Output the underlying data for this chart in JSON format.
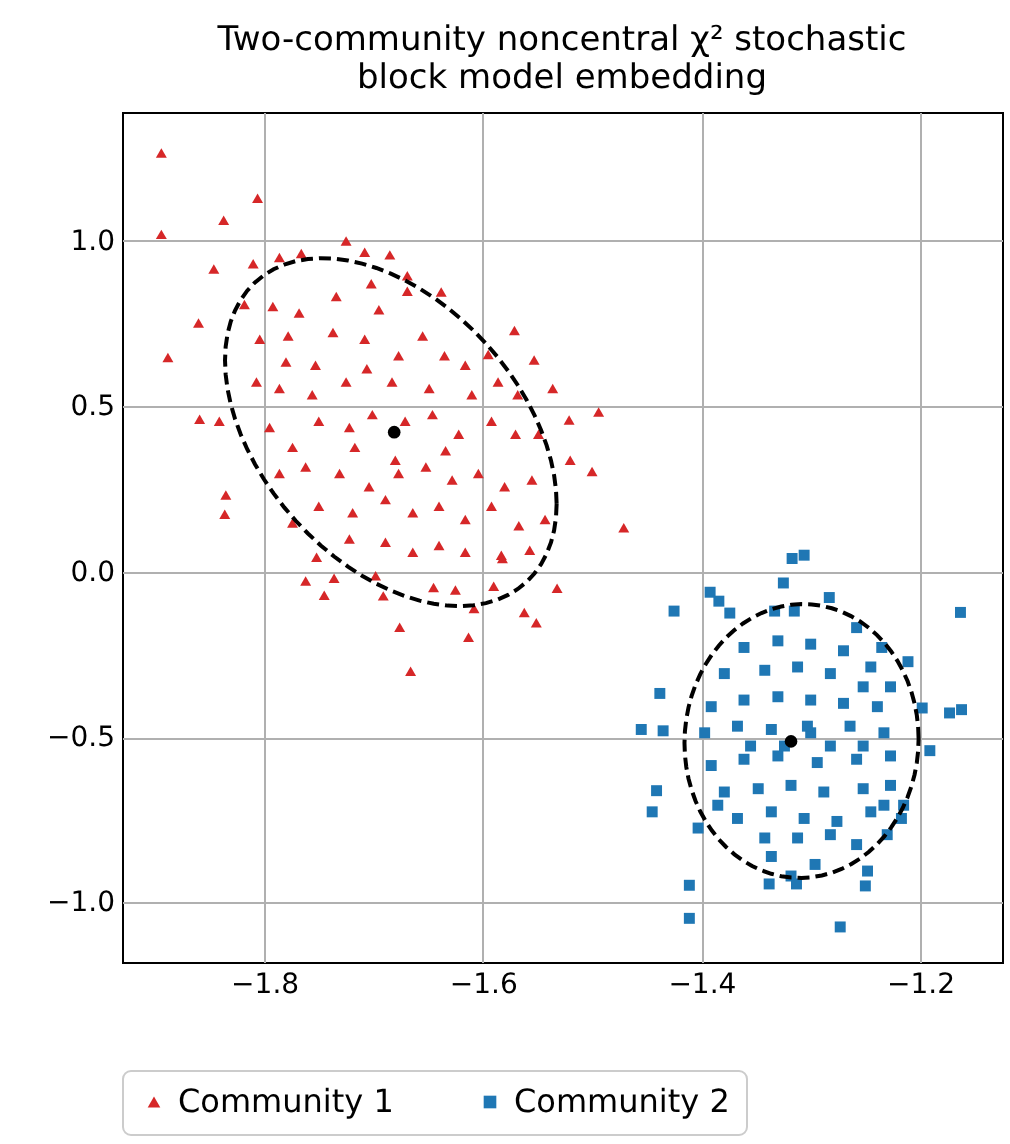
{
  "chart_data": {
    "type": "scatter",
    "title": "Two-community noncentral χ² stochastic block model embedding",
    "xlim": [
      -1.93,
      -1.125
    ],
    "ylim": [
      -1.18,
      1.39
    ],
    "xticks": [
      -1.8,
      -1.6,
      -1.4,
      -1.2
    ],
    "yticks": [
      {
        "value": -1,
        "label": "−1.0"
      },
      {
        "value": -0.5,
        "label": "−0.5"
      },
      {
        "value": 0,
        "label": "0.0"
      },
      {
        "value": 0.5,
        "label": "0.5"
      },
      {
        "value": 1,
        "label": "1.0"
      }
    ],
    "grid": true,
    "legend": "bottom",
    "series": [
      {
        "name": "Community 1",
        "type": "scatter",
        "marker": "triangle",
        "color": "#d62728",
        "x": [
          -1.894,
          -1.894,
          -1.806,
          -1.837,
          -1.846,
          -1.81,
          -1.786,
          -1.766,
          -1.725,
          -1.708,
          -1.685,
          -1.669,
          -1.638,
          -1.86,
          -1.888,
          -1.818,
          -1.859,
          -1.841,
          -1.835,
          -1.836,
          -1.571,
          -1.553,
          -1.536,
          -1.494,
          -1.521,
          -1.5,
          -1.471,
          -1.52,
          -1.532,
          -1.562,
          -1.551,
          -1.608,
          -1.613,
          -1.676,
          -1.666,
          -1.691,
          -1.745,
          -1.762,
          -1.752,
          -1.736,
          -1.698,
          -1.645,
          -1.625,
          -1.59,
          -1.774,
          -1.583,
          -1.557,
          -1.792,
          -1.768,
          -1.734,
          -1.702,
          -1.669,
          -1.695,
          -1.804,
          -1.778,
          -1.737,
          -1.708,
          -1.677,
          -1.655,
          -1.635,
          -1.616,
          -1.595,
          -1.807,
          -1.786,
          -1.756,
          -1.725,
          -1.706,
          -1.683,
          -1.649,
          -1.61,
          -1.586,
          -1.568,
          -1.795,
          -1.774,
          -1.75,
          -1.722,
          -1.701,
          -1.671,
          -1.646,
          -1.622,
          -1.592,
          -1.57,
          -1.549,
          -1.786,
          -1.762,
          -1.731,
          -1.704,
          -1.677,
          -1.652,
          -1.628,
          -1.604,
          -1.58,
          -1.555,
          -1.75,
          -1.719,
          -1.689,
          -1.664,
          -1.64,
          -1.616,
          -1.592,
          -1.567,
          -1.543,
          -1.722,
          -1.689,
          -1.664,
          -1.64,
          -1.616,
          -1.582,
          -1.634,
          -1.68,
          -1.717,
          -1.753,
          -1.78
        ],
        "values": [
          1.266,
          1.02,
          1.129,
          1.063,
          0.915,
          0.931,
          0.95,
          0.962,
          1.0,
          0.966,
          0.958,
          0.895,
          0.846,
          0.752,
          0.648,
          0.808,
          0.461,
          0.455,
          0.232,
          0.174,
          0.729,
          0.64,
          0.554,
          0.483,
          0.459,
          0.303,
          0.133,
          0.337,
          -0.05,
          -0.123,
          -0.154,
          -0.111,
          -0.198,
          -0.168,
          -0.301,
          -0.073,
          -0.071,
          -0.028,
          0.044,
          -0.02,
          -0.012,
          -0.048,
          -0.055,
          -0.044,
          0.147,
          0.05,
          0.065,
          0.802,
          0.782,
          0.832,
          0.871,
          0.848,
          0.792,
          0.703,
          0.713,
          0.723,
          0.703,
          0.653,
          0.713,
          0.653,
          0.624,
          0.657,
          0.574,
          0.554,
          0.535,
          0.574,
          0.614,
          0.574,
          0.554,
          0.535,
          0.574,
          0.535,
          0.436,
          0.376,
          0.455,
          0.436,
          0.475,
          0.455,
          0.475,
          0.416,
          0.455,
          0.416,
          0.416,
          0.297,
          0.317,
          0.297,
          0.257,
          0.297,
          0.317,
          0.277,
          0.297,
          0.257,
          0.277,
          0.198,
          0.178,
          0.218,
          0.178,
          0.198,
          0.158,
          0.198,
          0.139,
          0.158,
          0.099,
          0.089,
          0.059,
          0.079,
          0.059,
          0.04,
          0.366,
          0.337,
          0.376,
          0.624,
          0.634
        ]
      },
      {
        "name": "Community 2",
        "type": "scatter",
        "marker": "square",
        "color": "#1f77b4",
        "x": [
          -1.317,
          -1.306,
          -1.325,
          -1.283,
          -1.392,
          -1.384,
          -1.374,
          -1.425,
          -1.333,
          -1.315,
          -1.163,
          -1.258,
          -1.235,
          -1.211,
          -1.198,
          -1.173,
          -1.162,
          -1.191,
          -1.455,
          -1.435,
          -1.438,
          -1.441,
          -1.445,
          -1.403,
          -1.411,
          -1.411,
          -1.338,
          -1.318,
          -1.313,
          -1.296,
          -1.25,
          -1.248,
          -1.273,
          -1.336,
          -1.23,
          -1.215,
          -1.217,
          -1.361,
          -1.33,
          -1.3,
          -1.27,
          -1.245,
          -1.379,
          -1.342,
          -1.312,
          -1.282,
          -1.252,
          -1.227,
          -1.391,
          -1.361,
          -1.33,
          -1.3,
          -1.27,
          -1.239,
          -1.397,
          -1.367,
          -1.336,
          -1.3,
          -1.264,
          -1.233,
          -1.391,
          -1.361,
          -1.33,
          -1.294,
          -1.258,
          -1.227,
          -1.379,
          -1.348,
          -1.318,
          -1.288,
          -1.252,
          -1.227,
          -1.367,
          -1.336,
          -1.306,
          -1.276,
          -1.245,
          -1.342,
          -1.312,
          -1.282,
          -1.258,
          -1.385,
          -1.233,
          -1.303,
          -1.324,
          -1.355,
          -1.282,
          -1.252
        ],
        "values": [
          0.04,
          0.05,
          -0.034,
          -0.078,
          -0.062,
          -0.089,
          -0.125,
          -0.119,
          -0.119,
          -0.119,
          -0.123,
          -0.169,
          -0.229,
          -0.272,
          -0.412,
          -0.427,
          -0.417,
          -0.541,
          -0.477,
          -0.481,
          -0.368,
          -0.662,
          -0.726,
          -0.775,
          -0.948,
          -1.048,
          -0.944,
          -0.92,
          -0.944,
          -0.885,
          -0.95,
          -0.905,
          -1.074,
          -0.861,
          -0.795,
          -0.706,
          -0.746,
          -0.229,
          -0.209,
          -0.219,
          -0.239,
          -0.288,
          -0.308,
          -0.298,
          -0.288,
          -0.308,
          -0.348,
          -0.348,
          -0.408,
          -0.388,
          -0.378,
          -0.388,
          -0.398,
          -0.408,
          -0.487,
          -0.467,
          -0.477,
          -0.487,
          -0.467,
          -0.487,
          -0.586,
          -0.567,
          -0.557,
          -0.577,
          -0.567,
          -0.557,
          -0.666,
          -0.656,
          -0.646,
          -0.666,
          -0.656,
          -0.646,
          -0.746,
          -0.726,
          -0.746,
          -0.755,
          -0.726,
          -0.805,
          -0.805,
          -0.795,
          -0.825,
          -0.706,
          -0.706,
          -0.467,
          -0.527,
          -0.527,
          -0.527,
          -0.527
        ]
      },
      {
        "type": "scatter",
        "marker": "circle",
        "color": "#000000",
        "x": [
          -1.681,
          -1.318
        ],
        "values": [
          0.422,
          -0.513
        ]
      }
    ]
  }
}
